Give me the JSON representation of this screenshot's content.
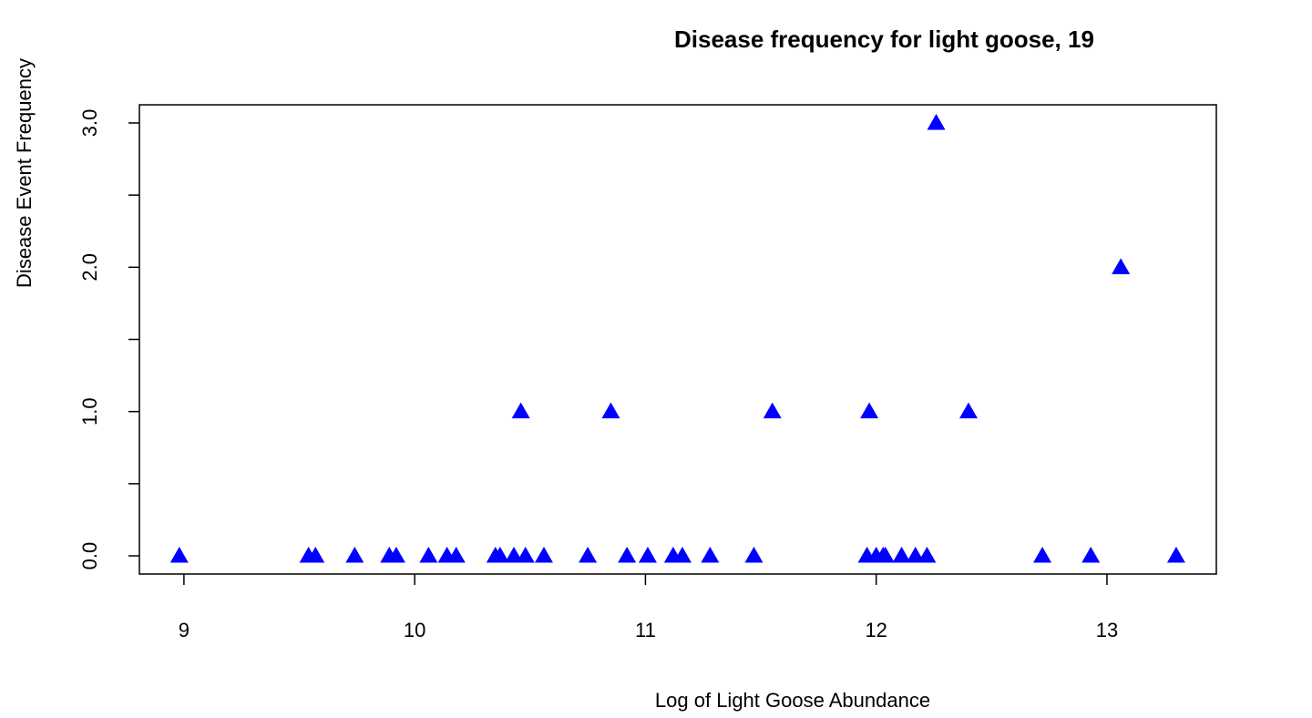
{
  "chart_data": {
    "type": "scatter",
    "title": "Disease frequency for light goose, 19",
    "x_label": "Log of Light Goose Abundance",
    "y_label": "Disease Event Frequency",
    "marker": "triangle",
    "color": "#0000ff",
    "x": [
      8.98,
      9.54,
      9.57,
      9.74,
      9.89,
      9.92,
      10.06,
      10.14,
      10.18,
      10.35,
      10.37,
      10.43,
      10.48,
      10.56,
      10.75,
      10.92,
      11.01,
      11.12,
      11.16,
      11.28,
      11.47,
      11.96,
      12.0,
      12.03,
      12.04,
      12.11,
      12.17,
      12.22,
      12.72,
      12.93,
      13.3,
      10.46,
      10.85,
      11.55,
      11.97,
      12.4,
      13.06,
      12.26
    ],
    "values": [
      0,
      0,
      0,
      0,
      0,
      0,
      0,
      0,
      0,
      0,
      0,
      0,
      0,
      0,
      0,
      0,
      0,
      0,
      0,
      0,
      0,
      0,
      0,
      0,
      0,
      0,
      0,
      0,
      0,
      0,
      0,
      1,
      1,
      1,
      1,
      1,
      2,
      3
    ],
    "xlim": [
      8.807,
      13.474
    ],
    "ylim": [
      -0.126,
      3.126
    ],
    "xticks": [
      9,
      10,
      11,
      12,
      13
    ],
    "yticks": [
      {
        "value": 0,
        "label": "0.0"
      },
      {
        "value": 1,
        "label": "1.0"
      },
      {
        "value": 2,
        "label": "2.0"
      },
      {
        "value": 3,
        "label": "3.0"
      }
    ],
    "yminor_ticks": [
      0.5,
      1.5,
      2.5
    ],
    "grid": false
  }
}
